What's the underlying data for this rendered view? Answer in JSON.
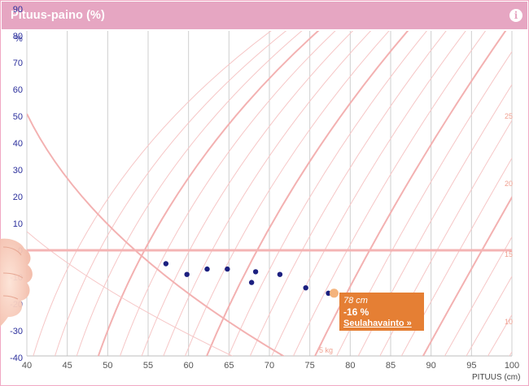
{
  "header": {
    "title": "Pituus-paino (%)"
  },
  "icons": {
    "info": "info-icon"
  },
  "tooltip": {
    "height": "78 cm",
    "value": "-16 %",
    "link": "Seulahavainto »"
  },
  "colors": {
    "header": "#e6a6c2",
    "points": "#1c2080",
    "highlight_point": "#f4b37c",
    "tooltip": "#e57f34",
    "contours": "#f6c6c6"
  },
  "chart_data": {
    "type": "scatter",
    "xlabel": "PITUUS (cm)",
    "ylabel": "%",
    "xlim": [
      40,
      100
    ],
    "ylim": [
      -46,
      100
    ],
    "x_ticks": [
      40,
      45,
      50,
      55,
      60,
      65,
      70,
      75,
      80,
      85,
      90,
      95,
      100
    ],
    "y_ticks": [
      90,
      80,
      70,
      60,
      50,
      40,
      30,
      20,
      10,
      0,
      -10,
      -20,
      -30,
      -40
    ],
    "grid": true,
    "reference_line_y": 0,
    "series": [
      {
        "x": [
          57.2,
          59.8,
          62.3,
          64.8,
          67.8,
          68.3,
          71.3,
          74.5,
          77.3,
          78.0
        ],
        "y": [
          -5,
          -9,
          -7,
          -7,
          -12,
          -8,
          -9,
          -14,
          -16,
          -16
        ]
      }
    ],
    "highlight": {
      "x": 78.0,
      "y": -16
    },
    "weight_contours": [
      "5 kg",
      "10",
      "15",
      "20",
      "25"
    ]
  }
}
